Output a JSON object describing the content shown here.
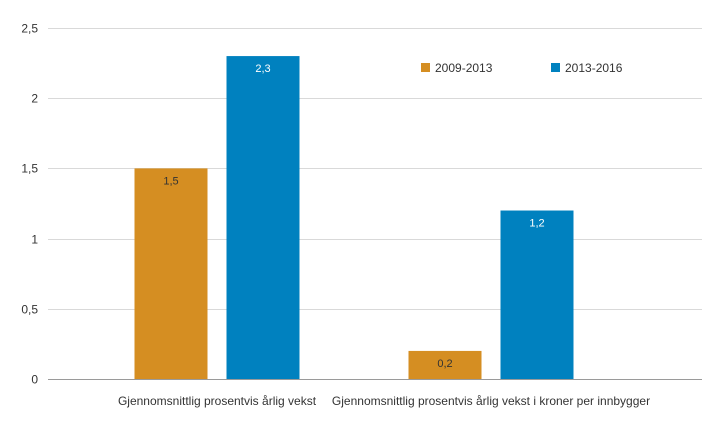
{
  "chart_data": {
    "type": "bar",
    "categories": [
      "Gjennomsnittlig prosentvis årlig vekst",
      "Gjennomsnittlig prosentvis årlig vekst i kroner per innbygger"
    ],
    "series": [
      {
        "name": "2009-2013",
        "values": [
          1.5,
          0.2
        ],
        "labels": [
          "1,5",
          "0,2"
        ],
        "color": "#D58E22"
      },
      {
        "name": "2013-2016",
        "values": [
          2.3,
          1.2
        ],
        "labels": [
          "2,3",
          "1,2"
        ],
        "color": "#0081BF"
      }
    ],
    "y_ticks": [
      {
        "value": 0,
        "label": "0"
      },
      {
        "value": 0.5,
        "label": "0,5"
      },
      {
        "value": 1,
        "label": "1"
      },
      {
        "value": 1.5,
        "label": "1,5"
      },
      {
        "value": 2,
        "label": "2"
      },
      {
        "value": 2.5,
        "label": "2,5"
      }
    ],
    "ylim": [
      0,
      2.5
    ],
    "grid": true,
    "legend_position": "top-right",
    "title": "",
    "xlabel": "",
    "ylabel": "",
    "colors": {
      "grid": "#D9D9D9",
      "axis": "#9A9A9A",
      "text": "#333333",
      "bar_label": "#333333",
      "bar_label_on_dark": "#FFFFFF"
    }
  }
}
